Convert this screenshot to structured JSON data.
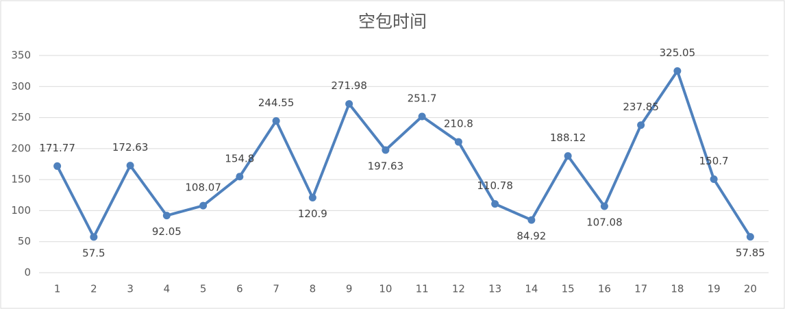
{
  "chart_data": {
    "type": "line",
    "title": "空包时间",
    "categories": [
      "1",
      "2",
      "3",
      "4",
      "5",
      "6",
      "7",
      "8",
      "9",
      "10",
      "11",
      "12",
      "13",
      "14",
      "15",
      "16",
      "17",
      "18",
      "19",
      "20"
    ],
    "series": [
      {
        "color": "#4f81bd",
        "values": [
          171.77,
          57.5,
          172.63,
          92.05,
          108.07,
          154.8,
          244.55,
          120.9,
          271.98,
          197.63,
          251.7,
          210.8,
          110.78,
          84.92,
          188.12,
          107.08,
          237.85,
          325.05,
          150.7,
          57.85
        ]
      }
    ],
    "ylim": [
      0,
      350
    ],
    "yticks": [
      0,
      50,
      100,
      150,
      200,
      250,
      300,
      350
    ],
    "grid": true
  }
}
